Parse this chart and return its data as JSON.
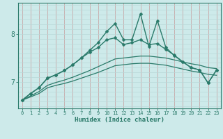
{
  "xlabel": "Humidex (Indice chaleur)",
  "x_values": [
    0,
    1,
    2,
    3,
    4,
    5,
    6,
    7,
    8,
    9,
    10,
    11,
    12,
    13,
    14,
    15,
    16,
    17,
    18,
    19,
    20,
    21,
    22,
    23
  ],
  "line1": [
    6.62,
    6.76,
    6.88,
    7.08,
    7.15,
    7.24,
    7.36,
    7.5,
    7.66,
    7.82,
    8.05,
    8.22,
    7.88,
    7.88,
    8.42,
    7.74,
    8.28,
    7.72,
    7.55,
    7.42,
    7.3,
    7.25,
    6.98,
    7.25
  ],
  "line2": [
    6.62,
    6.76,
    6.88,
    7.08,
    7.15,
    7.24,
    7.36,
    7.5,
    7.62,
    7.72,
    7.88,
    7.92,
    7.78,
    7.82,
    7.88,
    7.78,
    7.8,
    7.68,
    7.56,
    7.42,
    7.3,
    7.25,
    6.98,
    7.25
  ],
  "line3": [
    6.62,
    6.71,
    6.8,
    6.93,
    6.99,
    7.04,
    7.1,
    7.17,
    7.24,
    7.32,
    7.4,
    7.48,
    7.5,
    7.52,
    7.54,
    7.54,
    7.52,
    7.5,
    7.46,
    7.42,
    7.38,
    7.35,
    7.3,
    7.28
  ],
  "line4": [
    6.62,
    6.69,
    6.76,
    6.88,
    6.93,
    6.97,
    7.02,
    7.08,
    7.14,
    7.2,
    7.27,
    7.34,
    7.36,
    7.38,
    7.39,
    7.39,
    7.37,
    7.35,
    7.31,
    7.27,
    7.23,
    7.2,
    7.16,
    7.14
  ],
  "line_color": "#2a7a6a",
  "bg_color": "#cdeaea",
  "grid_color_v": "#c8a8a8",
  "grid_color_h": "#b8d8d8",
  "ylim": [
    6.45,
    8.65
  ],
  "yticks": [
    7,
    8
  ],
  "marker": "D",
  "marker_size": 2.5,
  "line_width": 1.0
}
